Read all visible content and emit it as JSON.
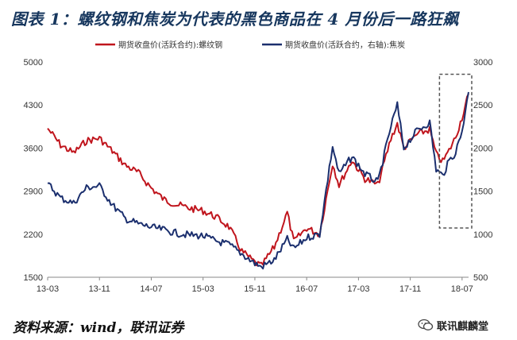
{
  "title": "图表 1：螺纹钢和焦炭为代表的黑色商品在 4 月份后一路狂飙",
  "source": "资料来源：wind，联讯证券",
  "watermark": "联讯麒麟堂",
  "colors": {
    "rebar": "#c0151d",
    "coke": "#1b2f6e",
    "highlight_box": "#555555"
  },
  "chart_data": {
    "type": "line",
    "title": "",
    "legend": {
      "placement": "top"
    },
    "x_ticks": [
      "13-03",
      "13-11",
      "14-07",
      "15-03",
      "15-11",
      "16-07",
      "17-03",
      "17-11",
      "18-07"
    ],
    "x_range": [
      "2013-03",
      "2018-08"
    ],
    "left_axis": {
      "ticks": [
        1500,
        2200,
        2900,
        3600,
        4300,
        5000
      ],
      "range": [
        1500,
        5000
      ]
    },
    "right_axis": {
      "ticks": [
        500,
        1000,
        1500,
        2000,
        2500,
        3000
      ],
      "range": [
        500,
        3000
      ]
    },
    "highlight_box": {
      "x_range": [
        "2018-04",
        "2018-08"
      ],
      "y_range_left": [
        2300,
        4800
      ]
    },
    "series": [
      {
        "name": "期货收盘价(活跃合约):螺纹钢",
        "axis": "left",
        "color": "#c0151d",
        "points": [
          [
            "2013-03",
            3920
          ],
          [
            "2013-05",
            3650
          ],
          [
            "2013-07",
            3520
          ],
          [
            "2013-09",
            3720
          ],
          [
            "2013-11",
            3760
          ],
          [
            "2014-01",
            3550
          ],
          [
            "2014-03",
            3320
          ],
          [
            "2014-05",
            3200
          ],
          [
            "2014-07",
            2950
          ],
          [
            "2014-09",
            2760
          ],
          [
            "2014-11",
            2680
          ],
          [
            "2015-01",
            2620
          ],
          [
            "2015-03",
            2580
          ],
          [
            "2015-05",
            2480
          ],
          [
            "2015-07",
            2320
          ],
          [
            "2015-09",
            1920
          ],
          [
            "2015-11",
            1740
          ],
          [
            "2015-12",
            1680
          ],
          [
            "2016-02",
            1990
          ],
          [
            "2016-04",
            2550
          ],
          [
            "2016-05",
            2080
          ],
          [
            "2016-07",
            2300
          ],
          [
            "2016-09",
            2200
          ],
          [
            "2016-11",
            3350
          ],
          [
            "2016-12",
            3000
          ],
          [
            "2017-02",
            3400
          ],
          [
            "2017-04",
            3100
          ],
          [
            "2017-06",
            3000
          ],
          [
            "2017-08",
            3750
          ],
          [
            "2017-09",
            4000
          ],
          [
            "2017-10",
            3600
          ],
          [
            "2017-12",
            3820
          ],
          [
            "2018-02",
            3900
          ],
          [
            "2018-03",
            3500
          ],
          [
            "2018-04",
            3380
          ],
          [
            "2018-05",
            3560
          ],
          [
            "2018-06",
            3780
          ],
          [
            "2018-07",
            4100
          ],
          [
            "2018-08",
            4480
          ]
        ]
      },
      {
        "name": "期货收盘价(活跃合约，右轴):焦炭",
        "axis": "right",
        "color": "#1b2f6e",
        "points": [
          [
            "2013-03",
            1590
          ],
          [
            "2013-05",
            1420
          ],
          [
            "2013-07",
            1360
          ],
          [
            "2013-09",
            1540
          ],
          [
            "2013-11",
            1560
          ],
          [
            "2014-01",
            1340
          ],
          [
            "2014-03",
            1180
          ],
          [
            "2014-05",
            1120
          ],
          [
            "2014-07",
            1080
          ],
          [
            "2014-09",
            1050
          ],
          [
            "2014-11",
            1010
          ],
          [
            "2015-01",
            990
          ],
          [
            "2015-03",
            980
          ],
          [
            "2015-05",
            920
          ],
          [
            "2015-07",
            880
          ],
          [
            "2015-09",
            770
          ],
          [
            "2015-11",
            660
          ],
          [
            "2015-12",
            620
          ],
          [
            "2016-02",
            700
          ],
          [
            "2016-04",
            940
          ],
          [
            "2016-05",
            830
          ],
          [
            "2016-07",
            960
          ],
          [
            "2016-09",
            1000
          ],
          [
            "2016-11",
            2020
          ],
          [
            "2016-12",
            1700
          ],
          [
            "2017-02",
            1900
          ],
          [
            "2017-04",
            1700
          ],
          [
            "2017-06",
            1600
          ],
          [
            "2017-08",
            2250
          ],
          [
            "2017-09",
            2500
          ],
          [
            "2017-10",
            2000
          ],
          [
            "2017-12",
            2200
          ],
          [
            "2018-02",
            2300
          ],
          [
            "2018-03",
            1750
          ],
          [
            "2018-04",
            1680
          ],
          [
            "2018-05",
            1850
          ],
          [
            "2018-06",
            1950
          ],
          [
            "2018-07",
            2200
          ],
          [
            "2018-08",
            2650
          ]
        ]
      }
    ]
  }
}
